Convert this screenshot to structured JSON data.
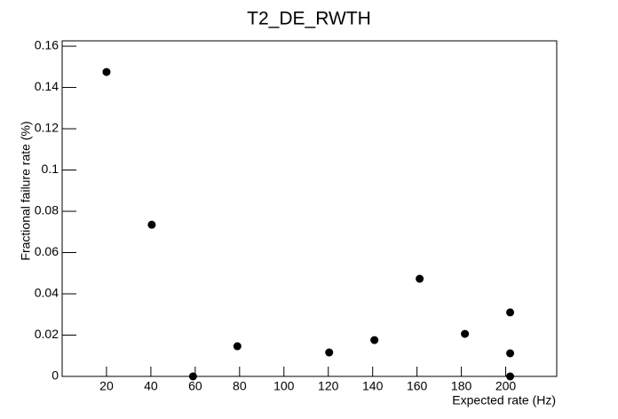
{
  "chart_data": {
    "type": "scatter",
    "title": "T2_DE_RWTH",
    "x_label": "Expected rate (Hz)",
    "y_label": "Fractional failure rate (%)",
    "x": [
      20,
      40.4,
      59,
      79,
      120.4,
      140.8,
      161.2,
      181.6,
      202,
      202,
      202
    ],
    "values": [
      0.1475,
      0.0735,
      0,
      0.0146,
      0.0116,
      0.0176,
      0.0473,
      0.0206,
      0.031,
      0.0112,
      0
    ],
    "color": "#000000",
    "xlim": [
      0,
      223
    ],
    "ylim": [
      0,
      0.1626
    ],
    "xticks": [
      20,
      40,
      60,
      80,
      100,
      120,
      140,
      160,
      180,
      200
    ],
    "yticks": [
      0,
      0.02,
      0.04,
      0.06,
      0.08,
      0.1,
      0.12,
      0.14,
      0.16
    ]
  }
}
